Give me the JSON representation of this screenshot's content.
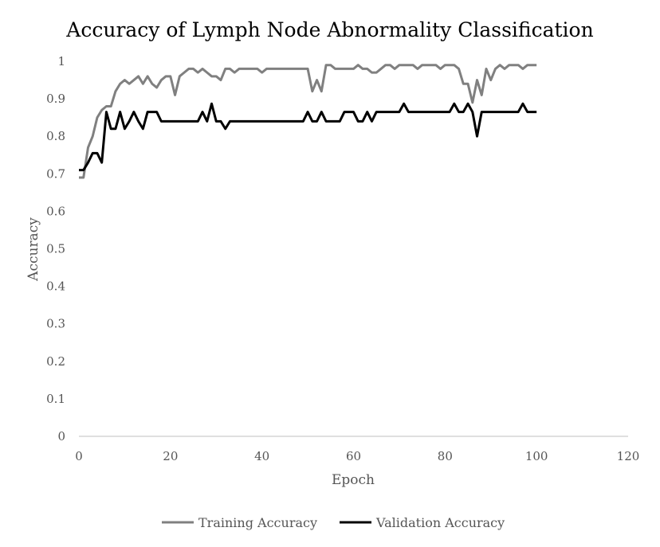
{
  "chart_data": {
    "type": "line",
    "title": "Accuracy of Lymph Node Abnormality Classification",
    "xlabel": "Epoch",
    "ylabel": "Accuracy",
    "xlim": [
      0,
      120
    ],
    "ylim": [
      0,
      1
    ],
    "x_ticks": [
      "0",
      "20",
      "40",
      "60",
      "80",
      "100",
      "120"
    ],
    "y_ticks": [
      "0",
      "0.1",
      "0.2",
      "0.3",
      "0.4",
      "0.5",
      "0.6",
      "0.7",
      "0.8",
      "0.9",
      "1"
    ],
    "grid": false,
    "legend_position": "bottom",
    "series": [
      {
        "name": "Training Accuracy",
        "color": "#808080",
        "x": [
          0,
          1,
          2,
          3,
          4,
          5,
          6,
          7,
          8,
          9,
          10,
          11,
          12,
          13,
          14,
          15,
          16,
          17,
          18,
          19,
          20,
          21,
          22,
          23,
          24,
          25,
          26,
          27,
          28,
          29,
          30,
          31,
          32,
          33,
          34,
          35,
          36,
          37,
          38,
          39,
          40,
          41,
          42,
          43,
          44,
          45,
          46,
          47,
          48,
          49,
          50,
          51,
          52,
          53,
          54,
          55,
          56,
          57,
          58,
          59,
          60,
          61,
          62,
          63,
          64,
          65,
          66,
          67,
          68,
          69,
          70,
          71,
          72,
          73,
          74,
          75,
          76,
          77,
          78,
          79,
          80,
          81,
          82,
          83,
          84,
          85,
          86,
          87,
          88,
          89,
          90,
          91,
          92,
          93,
          94,
          95,
          96,
          97,
          98,
          99,
          100
        ],
        "values": [
          0.69,
          0.69,
          0.77,
          0.8,
          0.85,
          0.87,
          0.88,
          0.88,
          0.92,
          0.94,
          0.95,
          0.94,
          0.95,
          0.96,
          0.94,
          0.96,
          0.94,
          0.93,
          0.95,
          0.96,
          0.96,
          0.91,
          0.96,
          0.97,
          0.98,
          0.98,
          0.97,
          0.98,
          0.97,
          0.96,
          0.96,
          0.95,
          0.98,
          0.98,
          0.97,
          0.98,
          0.98,
          0.98,
          0.98,
          0.98,
          0.97,
          0.98,
          0.98,
          0.98,
          0.98,
          0.98,
          0.98,
          0.98,
          0.98,
          0.98,
          0.98,
          0.92,
          0.95,
          0.92,
          0.99,
          0.99,
          0.98,
          0.98,
          0.98,
          0.98,
          0.98,
          0.99,
          0.98,
          0.98,
          0.97,
          0.97,
          0.98,
          0.99,
          0.99,
          0.98,
          0.99,
          0.99,
          0.99,
          0.99,
          0.98,
          0.99,
          0.99,
          0.99,
          0.99,
          0.98,
          0.99,
          0.99,
          0.99,
          0.98,
          0.94,
          0.94,
          0.89,
          0.95,
          0.91,
          0.98,
          0.95,
          0.98,
          0.99,
          0.98,
          0.99,
          0.99,
          0.99,
          0.98,
          0.99,
          0.99,
          0.99
        ]
      },
      {
        "name": "Validation Accuracy",
        "color": "#000000",
        "x": [
          0,
          1,
          2,
          3,
          4,
          5,
          6,
          7,
          8,
          9,
          10,
          11,
          12,
          13,
          14,
          15,
          16,
          17,
          18,
          19,
          20,
          21,
          22,
          23,
          24,
          25,
          26,
          27,
          28,
          29,
          30,
          31,
          32,
          33,
          34,
          35,
          36,
          37,
          38,
          39,
          40,
          41,
          42,
          43,
          44,
          45,
          46,
          47,
          48,
          49,
          50,
          51,
          52,
          53,
          54,
          55,
          56,
          57,
          58,
          59,
          60,
          61,
          62,
          63,
          64,
          65,
          66,
          67,
          68,
          69,
          70,
          71,
          72,
          73,
          74,
          75,
          76,
          77,
          78,
          79,
          80,
          81,
          82,
          83,
          84,
          85,
          86,
          87,
          88,
          89,
          90,
          91,
          92,
          93,
          94,
          95,
          96,
          97,
          98,
          99,
          100
        ],
        "values": [
          0.71,
          0.71,
          0.73,
          0.755,
          0.755,
          0.73,
          0.865,
          0.82,
          0.82,
          0.865,
          0.82,
          0.84,
          0.865,
          0.84,
          0.82,
          0.865,
          0.865,
          0.865,
          0.84,
          0.84,
          0.84,
          0.84,
          0.84,
          0.84,
          0.84,
          0.84,
          0.84,
          0.865,
          0.84,
          0.887,
          0.84,
          0.84,
          0.82,
          0.84,
          0.84,
          0.84,
          0.84,
          0.84,
          0.84,
          0.84,
          0.84,
          0.84,
          0.84,
          0.84,
          0.84,
          0.84,
          0.84,
          0.84,
          0.84,
          0.84,
          0.865,
          0.84,
          0.84,
          0.865,
          0.84,
          0.84,
          0.84,
          0.84,
          0.865,
          0.865,
          0.865,
          0.84,
          0.84,
          0.865,
          0.84,
          0.865,
          0.865,
          0.865,
          0.865,
          0.865,
          0.865,
          0.887,
          0.865,
          0.865,
          0.865,
          0.865,
          0.865,
          0.865,
          0.865,
          0.865,
          0.865,
          0.865,
          0.887,
          0.865,
          0.865,
          0.887,
          0.865,
          0.8,
          0.865,
          0.865,
          0.865,
          0.865,
          0.865,
          0.865,
          0.865,
          0.865,
          0.865,
          0.887,
          0.865,
          0.865,
          0.865
        ]
      }
    ]
  }
}
